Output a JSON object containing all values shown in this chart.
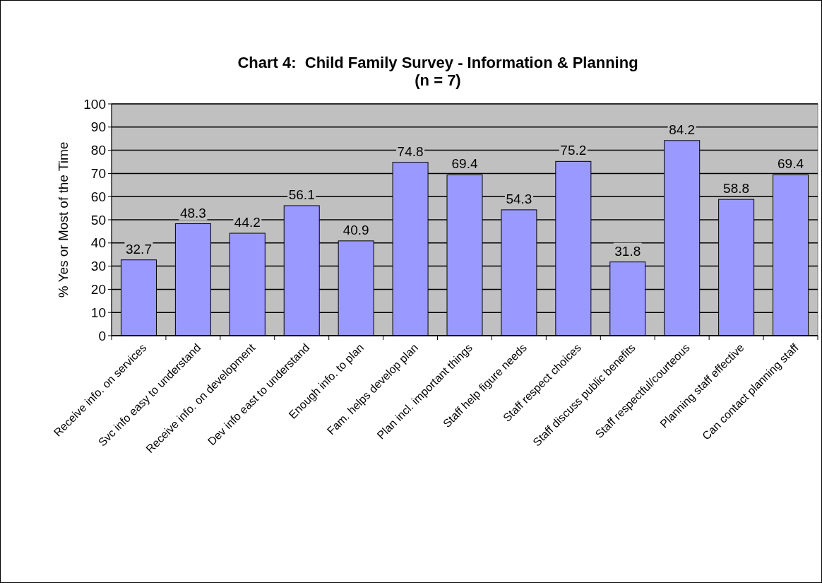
{
  "chart_data": {
    "type": "bar",
    "title": "Chart 4:  Child Family Survey - Information & Planning",
    "subtitle": "(n = 7)",
    "ylabel": "% Yes or Most of the Time",
    "categories": [
      "Receive info. on services",
      "Svc info easy to understand",
      "Receive info. on development",
      "Dev info east to understand",
      "Enough info. to plan",
      "Fam. helps develop plan",
      "Plan incl. important things",
      "Staff help figure needs",
      "Staff respect choices",
      "Staff discuss public benefits",
      "Staff respectful/courteous",
      "Planning staff effective",
      "Can contact planning staff"
    ],
    "values": [
      32.7,
      48.3,
      44.2,
      56.1,
      40.9,
      74.8,
      69.4,
      54.3,
      75.2,
      31.8,
      84.2,
      58.8,
      69.4
    ],
    "color": "#9999ff",
    "ylim": [
      0,
      100
    ],
    "yticks": [
      0,
      10,
      20,
      30,
      40,
      50,
      60,
      70,
      80,
      90,
      100
    ],
    "grid": "y",
    "data_labels": true
  }
}
